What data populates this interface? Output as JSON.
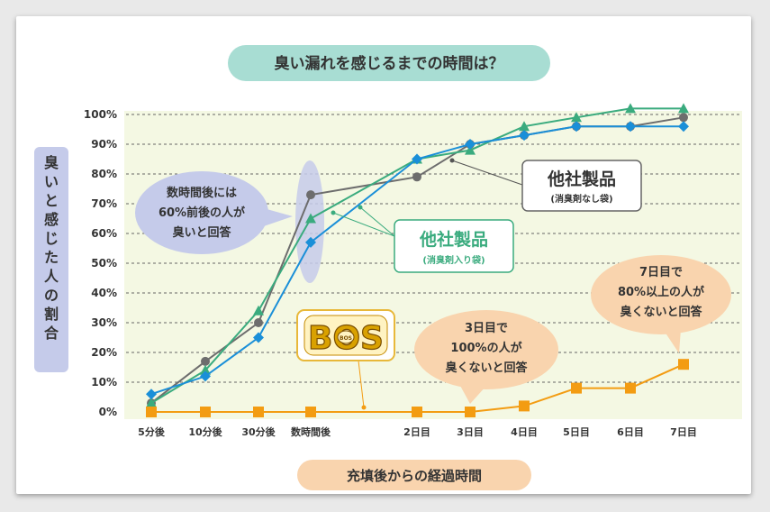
{
  "chart_data": {
    "type": "line",
    "title": "臭い漏れを感じるまでの時間は？",
    "xlabel": "充填後からの経過時間",
    "ylabel": "臭いと感じた人の割合",
    "ylim": [
      0,
      100
    ],
    "yticks": [
      "100%",
      "90%",
      "80%",
      "70%",
      "60%",
      "50%",
      "40%",
      "30%",
      "20%",
      "10%",
      "0%"
    ],
    "categories": [
      "5分後",
      "10分後",
      "30分後",
      "数時間後",
      "2日目",
      "3日目",
      "4日目",
      "5日目",
      "6日目",
      "7日目"
    ],
    "grid": "horizontal dashed",
    "series": [
      {
        "name": "他社製品(消臭剤なし袋)",
        "color": "#6d6d6d",
        "marker": "circle",
        "values": [
          3,
          17,
          30,
          73,
          79,
          90,
          93,
          96,
          96,
          99
        ]
      },
      {
        "name": "他社製品(消臭剤入り袋)",
        "color": "#3aab7e",
        "marker": "triangle",
        "values": [
          3,
          14,
          34,
          65,
          85,
          88,
          96,
          99,
          102,
          102
        ]
      },
      {
        "name": "他社製品(消臭剤入り袋) blue",
        "color": "#1a8fd8",
        "marker": "diamond",
        "values": [
          6,
          12,
          25,
          57,
          85,
          90,
          93,
          96,
          96,
          96
        ]
      },
      {
        "name": "BOS",
        "color": "#f39c12",
        "marker": "square",
        "values": [
          0,
          0,
          0,
          0,
          0,
          0,
          2,
          8,
          8,
          16
        ]
      }
    ]
  },
  "labels": {
    "gray_brand": "他社製品",
    "gray_sub": "(消臭剤なし袋)",
    "green_brand": "他社製品",
    "green_sub": "(消臭剤入り袋)",
    "logo": "BOS",
    "logo_small": "BOS"
  },
  "callouts": {
    "left": [
      "数時間後には",
      "60%前後の人が",
      "臭いと回答"
    ],
    "mid": [
      "3日目で",
      "100%の人が",
      "臭くないと回答"
    ],
    "right": [
      "7日目で",
      "80%以上の人が",
      "臭くないと回答"
    ]
  },
  "colors": {
    "plot_bg": "#f4f8e3",
    "title_bg": "#a8ddd3",
    "xtitle_bg": "#f9d4ae",
    "ylabel_bg": "#c5cbea",
    "callout_blue": "#c5cbea",
    "callout_orange": "#f9d4ae",
    "gold": "#c48a00"
  }
}
